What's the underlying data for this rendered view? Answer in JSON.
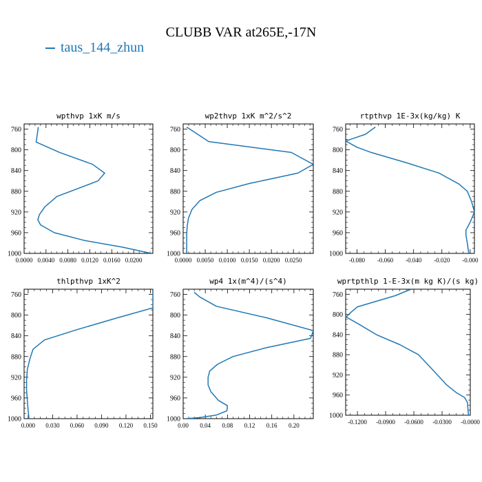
{
  "title": "CLUBB VAR at265E,-17N",
  "colors": {
    "series": "#1f77b4",
    "axis": "#000000"
  },
  "legend": {
    "label": "taus_144_zhun"
  },
  "chart_data": [
    {
      "type": "line",
      "title": "wpthvp  1xK m/s",
      "series_name": "taus_144_zhun",
      "xlim": [
        0.0,
        0.0235
      ],
      "ylim": [
        1000,
        750
      ],
      "yticks": [
        760,
        800,
        840,
        880,
        920,
        960,
        1000
      ],
      "xticks": [
        0.0,
        0.004,
        0.008,
        0.012,
        0.016,
        0.02
      ],
      "xtick_labels": [
        "0.0000",
        "0.0040",
        "0.0080",
        "0.0120",
        "0.0160",
        "0.0200"
      ],
      "points": [
        [
          0.0026,
          756
        ],
        [
          0.0022,
          785
        ],
        [
          0.0065,
          805
        ],
        [
          0.0125,
          828
        ],
        [
          0.0147,
          845
        ],
        [
          0.0135,
          860
        ],
        [
          0.006,
          890
        ],
        [
          0.0038,
          910
        ],
        [
          0.0028,
          925
        ],
        [
          0.0025,
          935
        ],
        [
          0.003,
          945
        ],
        [
          0.0055,
          960
        ],
        [
          0.011,
          975
        ],
        [
          0.018,
          988
        ],
        [
          0.0232,
          1000
        ]
      ]
    },
    {
      "type": "line",
      "title": "wp2thvp  1xK m^2/s^2",
      "series_name": "taus_144_zhun",
      "xlim": [
        0.0,
        0.0295
      ],
      "ylim": [
        1000,
        750
      ],
      "yticks": [
        760,
        800,
        840,
        880,
        920,
        960,
        1000
      ],
      "xticks": [
        0.0,
        0.005,
        0.01,
        0.015,
        0.02,
        0.025
      ],
      "xtick_labels": [
        "0.0000",
        "0.0050",
        "0.0100",
        "0.0150",
        "0.0200",
        "0.0250"
      ],
      "points": [
        [
          0.0008,
          756
        ],
        [
          0.0058,
          784
        ],
        [
          0.0245,
          805
        ],
        [
          0.0295,
          828
        ],
        [
          0.026,
          845
        ],
        [
          0.015,
          865
        ],
        [
          0.0075,
          882
        ],
        [
          0.0038,
          898
        ],
        [
          0.002,
          915
        ],
        [
          0.0012,
          932
        ],
        [
          0.0009,
          948
        ],
        [
          0.0008,
          965
        ],
        [
          0.0008,
          985
        ],
        [
          0.0008,
          1000
        ]
      ]
    },
    {
      "type": "line",
      "title": "rtpthvp  1E-3x(kg/kg) K",
      "series_name": "taus_144_zhun",
      "xlim": [
        -0.088,
        0.003
      ],
      "ylim": [
        1000,
        750
      ],
      "yticks": [
        760,
        800,
        840,
        880,
        920,
        960,
        1000
      ],
      "xticks": [
        -0.08,
        -0.06,
        -0.04,
        -0.02,
        0.0
      ],
      "xtick_labels": [
        "-0.080",
        "-0.060",
        "-0.040",
        "-0.020",
        "-0.000"
      ],
      "points": [
        [
          -0.067,
          756
        ],
        [
          -0.074,
          770
        ],
        [
          -0.088,
          783
        ],
        [
          -0.08,
          795
        ],
        [
          -0.07,
          805
        ],
        [
          -0.045,
          825
        ],
        [
          -0.022,
          845
        ],
        [
          -0.008,
          866
        ],
        [
          -0.002,
          880
        ],
        [
          0.001,
          900
        ],
        [
          0.003,
          920
        ],
        [
          0.0,
          940
        ],
        [
          -0.003,
          955
        ],
        [
          -0.003,
          965
        ],
        [
          -0.002,
          980
        ],
        [
          -0.001,
          1000
        ]
      ]
    },
    {
      "type": "line",
      "title": "thlpthvp  1xK^2",
      "series_name": "taus_144_zhun",
      "xlim": [
        -0.005,
        0.153
      ],
      "ylim": [
        1000,
        750
      ],
      "yticks": [
        760,
        800,
        840,
        880,
        920,
        960,
        1000
      ],
      "xticks": [
        0.0,
        0.03,
        0.06,
        0.09,
        0.12,
        0.15
      ],
      "xtick_labels": [
        "0.000",
        "0.030",
        "0.060",
        "0.090",
        "0.120",
        "0.150"
      ],
      "points": [
        [
          0.153,
          756
        ],
        [
          0.153,
          786
        ],
        [
          0.11,
          805
        ],
        [
          0.06,
          828
        ],
        [
          0.02,
          848
        ],
        [
          0.006,
          866
        ],
        [
          0.002,
          885
        ],
        [
          -0.001,
          905
        ],
        [
          -0.002,
          925
        ],
        [
          -0.002,
          945
        ],
        [
          -0.001,
          965
        ],
        [
          0.0,
          985
        ],
        [
          0.001,
          1000
        ]
      ]
    },
    {
      "type": "line",
      "title": "wp4  1x(m^4)/(s^4)",
      "series_name": "taus_144_zhun",
      "xlim": [
        0.0,
        0.235
      ],
      "ylim": [
        1000,
        750
      ],
      "yticks": [
        760,
        800,
        840,
        880,
        920,
        960,
        1000
      ],
      "xticks": [
        0.0,
        0.04,
        0.08,
        0.12,
        0.16,
        0.2
      ],
      "xtick_labels": [
        "0.00",
        "0.04",
        "0.08",
        "0.12",
        "0.16",
        "0.20"
      ],
      "points": [
        [
          0.02,
          756
        ],
        [
          0.03,
          765
        ],
        [
          0.06,
          783
        ],
        [
          0.15,
          805
        ],
        [
          0.235,
          830
        ],
        [
          0.23,
          845
        ],
        [
          0.15,
          863
        ],
        [
          0.09,
          880
        ],
        [
          0.062,
          895
        ],
        [
          0.048,
          908
        ],
        [
          0.045,
          920
        ],
        [
          0.045,
          935
        ],
        [
          0.05,
          948
        ],
        [
          0.064,
          965
        ],
        [
          0.08,
          975
        ],
        [
          0.079,
          985
        ],
        [
          0.06,
          993
        ],
        [
          0.03,
          998
        ],
        [
          0.005,
          1000
        ]
      ]
    },
    {
      "type": "line",
      "title": "wprtpthlp  1-E-3x(m kg K)/(s kg)",
      "series_name": "taus_144_zhun",
      "xlim": [
        -0.1325,
        0.0
      ],
      "ylim": [
        1000,
        750
      ],
      "yticks": [
        760,
        800,
        840,
        880,
        920,
        960,
        1000
      ],
      "xticks": [
        -0.12,
        -0.09,
        -0.06,
        -0.03,
        0.0
      ],
      "xtick_labels": [
        "-0.1200",
        "-0.0900",
        "-0.0600",
        "-0.0300",
        "-0.0000"
      ],
      "points": [
        [
          -0.063,
          750
        ],
        [
          -0.08,
          763
        ],
        [
          -0.12,
          785
        ],
        [
          -0.127,
          796
        ],
        [
          -0.132,
          805
        ],
        [
          -0.118,
          820
        ],
        [
          -0.1,
          840
        ],
        [
          -0.075,
          860
        ],
        [
          -0.055,
          880
        ],
        [
          -0.045,
          900
        ],
        [
          -0.035,
          920
        ],
        [
          -0.025,
          940
        ],
        [
          -0.015,
          955
        ],
        [
          -0.006,
          965
        ],
        [
          -0.003,
          975
        ],
        [
          -0.002,
          1000
        ]
      ]
    }
  ]
}
